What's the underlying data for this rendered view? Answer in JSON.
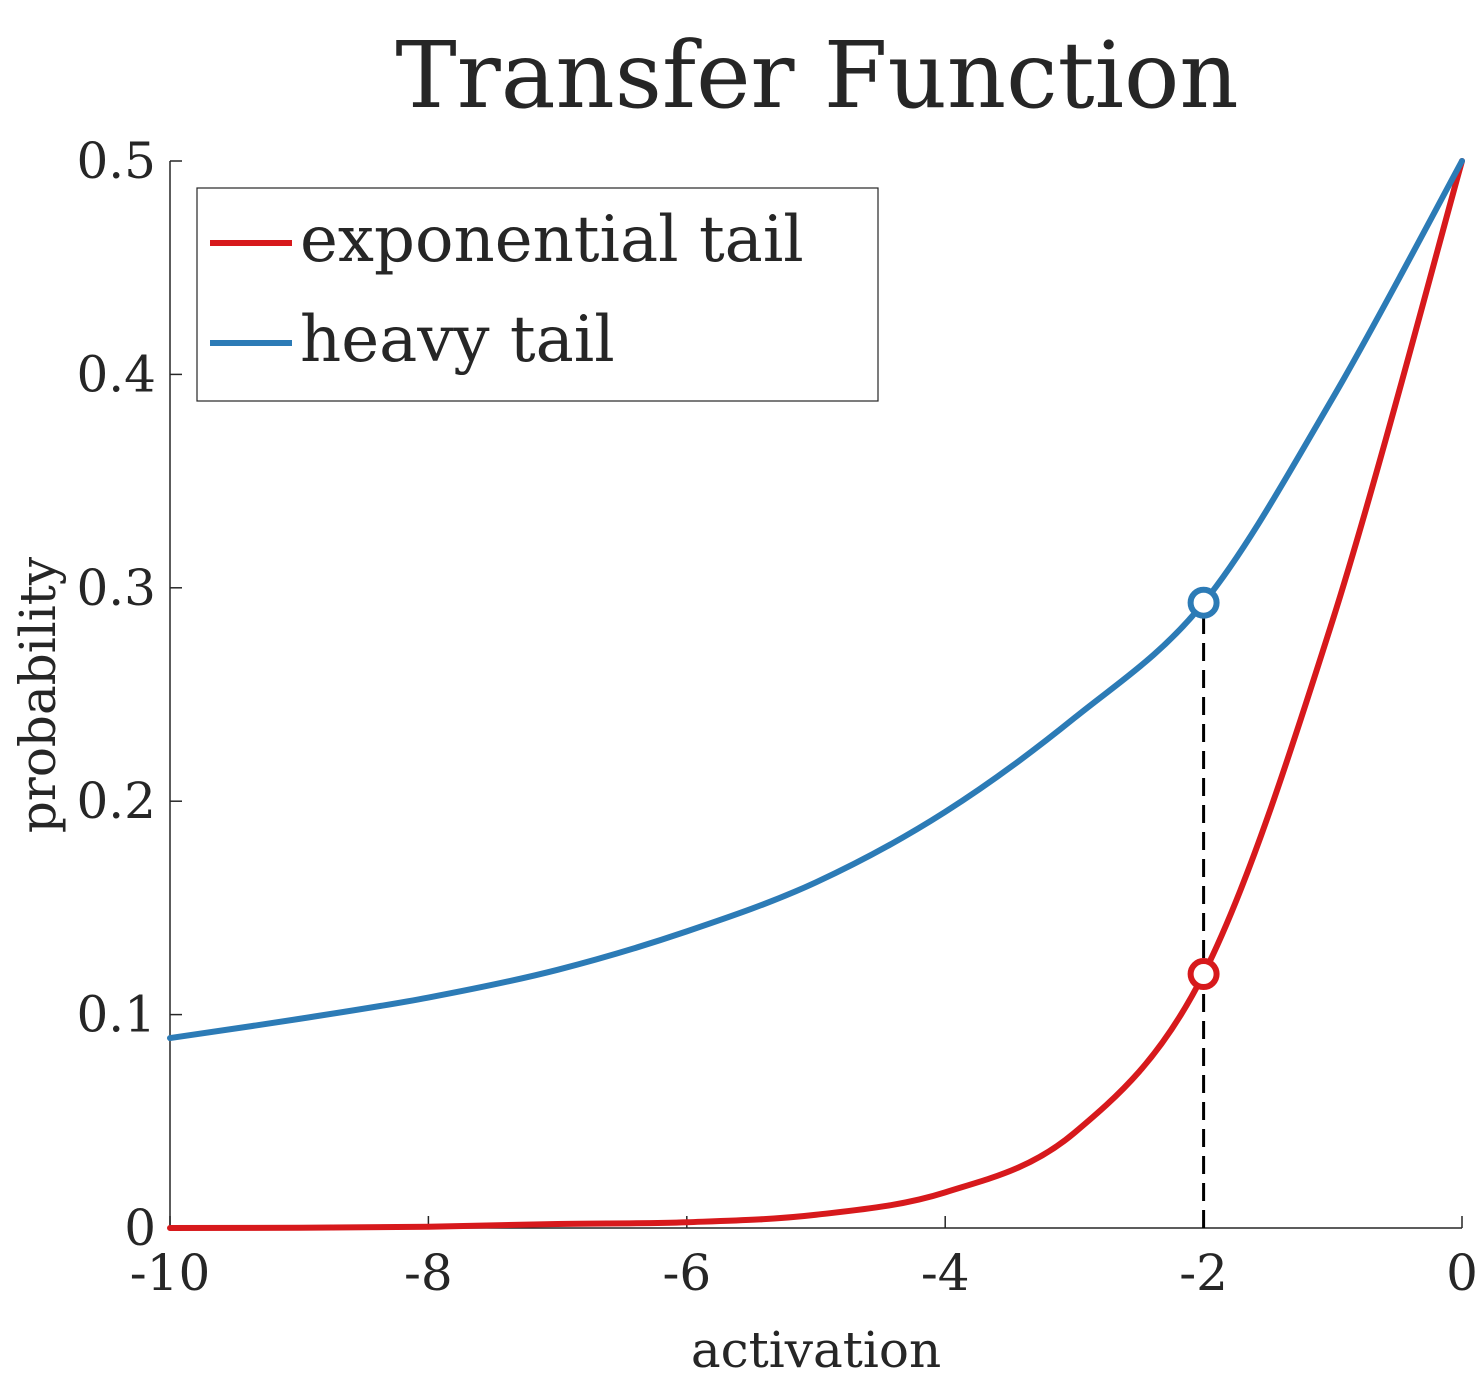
{
  "chart_data": {
    "type": "line",
    "title": "Transfer Function",
    "xlabel": "activation",
    "ylabel": "probability",
    "xlim": [
      -10,
      0
    ],
    "ylim": [
      0,
      0.5
    ],
    "xticks": [
      -10,
      -8,
      -6,
      -4,
      -2,
      0
    ],
    "xtick_labels": [
      "-10",
      "-8",
      "-6",
      "-4",
      "-2",
      "0"
    ],
    "yticks": [
      0,
      0.1,
      0.2,
      0.3,
      0.4,
      0.5
    ],
    "ytick_labels": [
      "0",
      "0.1",
      "0.2",
      "0.3",
      "0.4",
      "0.5"
    ],
    "grid": false,
    "legend_position": "top-left",
    "x": [
      -10,
      -9,
      -8,
      -7,
      -6,
      -5,
      -4,
      -3,
      -2,
      -1,
      0
    ],
    "series": [
      {
        "name": "exponential tail",
        "color": "#d7191c",
        "values": [
          0.0,
          0.0001,
          0.0006,
          0.0019,
          0.0027,
          0.0062,
          0.0167,
          0.0446,
          0.119,
          0.285,
          0.5
        ]
      },
      {
        "name": "heavy tail",
        "color": "#2c7bb6",
        "values": [
          0.089,
          0.098,
          0.108,
          0.121,
          0.139,
          0.162,
          0.195,
          0.239,
          0.293,
          0.389,
          0.5
        ]
      }
    ],
    "markers": [
      {
        "series": "exponential tail",
        "x": -2,
        "y": 0.119,
        "style": "open-circle"
      },
      {
        "series": "heavy tail",
        "x": -2,
        "y": 0.293,
        "style": "open-circle"
      }
    ],
    "reference_line": {
      "x": -2,
      "y_from": 0,
      "y_to": 0.293,
      "style": "dashed",
      "color": "#000000"
    }
  }
}
